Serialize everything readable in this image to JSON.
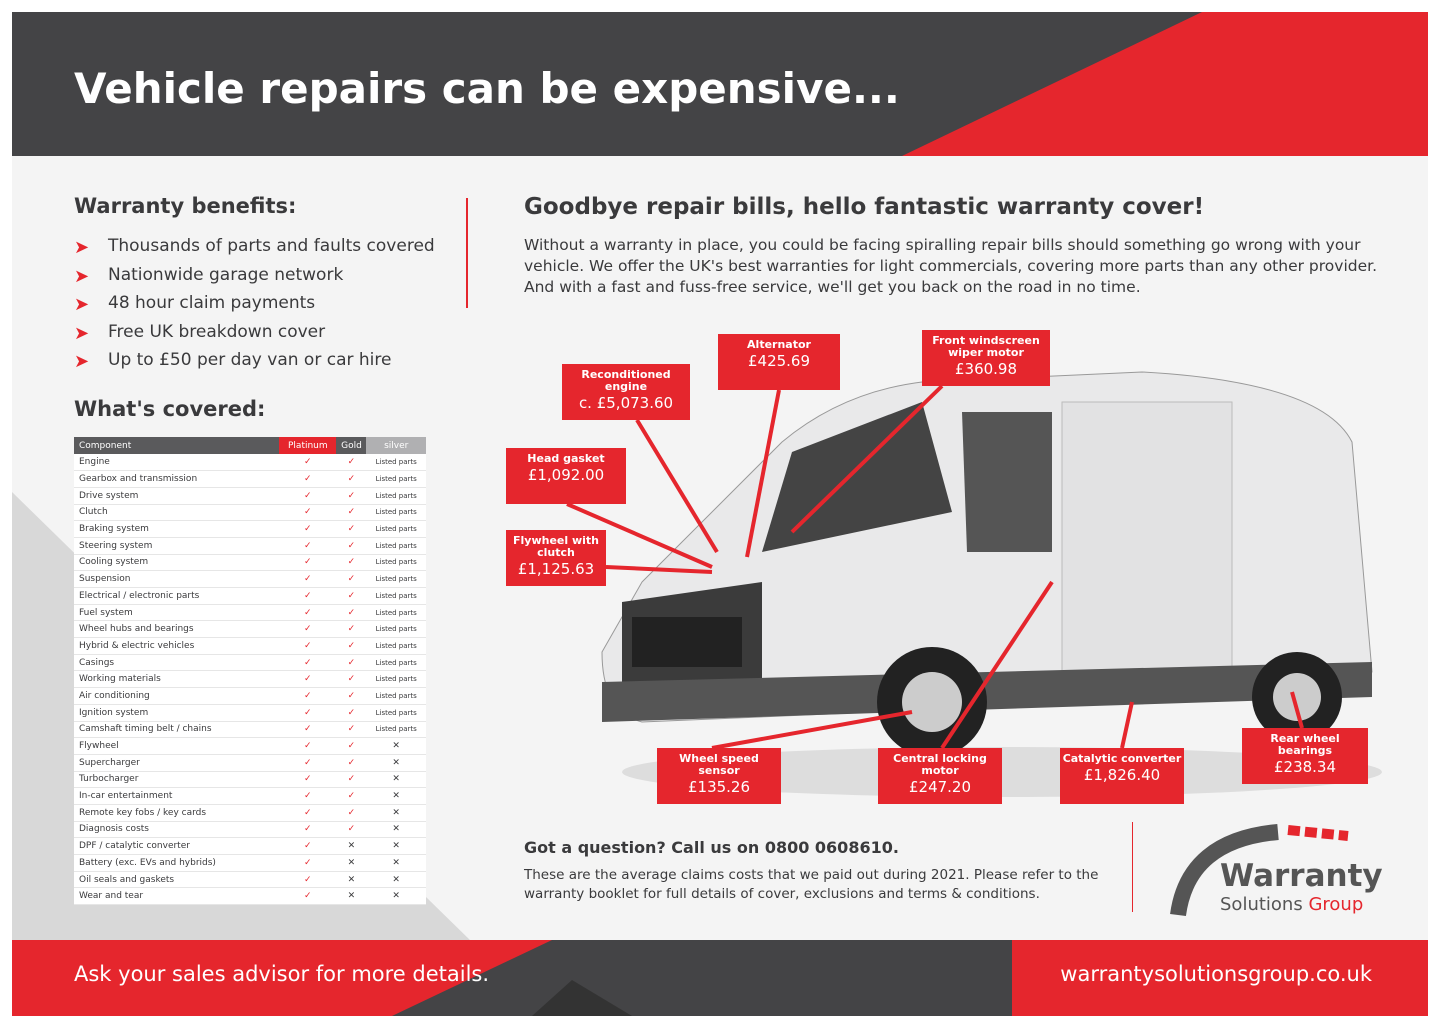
{
  "header": {
    "title": "Vehicle repairs can be expensive..."
  },
  "benefits": {
    "heading": "Warranty benefits:",
    "items": [
      "Thousands of parts and faults covered",
      "Nationwide garage network",
      "48 hour claim payments",
      "Free UK breakdown cover",
      "Up to £50 per day van or car hire"
    ]
  },
  "covered": {
    "heading": "What's covered:",
    "columns": [
      "Component",
      "Platinum",
      "Gold",
      "silver"
    ],
    "rows": [
      [
        "Engine",
        "✓",
        "✓",
        "Listed parts"
      ],
      [
        "Gearbox and transmission",
        "✓",
        "✓",
        "Listed parts"
      ],
      [
        "Drive system",
        "✓",
        "✓",
        "Listed parts"
      ],
      [
        "Clutch",
        "✓",
        "✓",
        "Listed parts"
      ],
      [
        "Braking system",
        "✓",
        "✓",
        "Listed parts"
      ],
      [
        "Steering system",
        "✓",
        "✓",
        "Listed parts"
      ],
      [
        "Cooling system",
        "✓",
        "✓",
        "Listed parts"
      ],
      [
        "Suspension",
        "✓",
        "✓",
        "Listed parts"
      ],
      [
        "Electrical / electronic parts",
        "✓",
        "✓",
        "Listed parts"
      ],
      [
        "Fuel system",
        "✓",
        "✓",
        "Listed parts"
      ],
      [
        "Wheel hubs and bearings",
        "✓",
        "✓",
        "Listed parts"
      ],
      [
        "Hybrid & electric vehicles",
        "✓",
        "✓",
        "Listed parts"
      ],
      [
        "Casings",
        "✓",
        "✓",
        "Listed parts"
      ],
      [
        "Working materials",
        "✓",
        "✓",
        "Listed parts"
      ],
      [
        "Air conditioning",
        "✓",
        "✓",
        "Listed parts"
      ],
      [
        "Ignition system",
        "✓",
        "✓",
        "Listed parts"
      ],
      [
        "Camshaft timing belt / chains",
        "✓",
        "✓",
        "Listed parts"
      ],
      [
        "Flywheel",
        "✓",
        "✓",
        "✕"
      ],
      [
        "Supercharger",
        "✓",
        "✓",
        "✕"
      ],
      [
        "Turbocharger",
        "✓",
        "✓",
        "✕"
      ],
      [
        "In-car entertainment",
        "✓",
        "✓",
        "✕"
      ],
      [
        "Remote key fobs / key cards",
        "✓",
        "✓",
        "✕"
      ],
      [
        "Diagnosis costs",
        "✓",
        "✓",
        "✕"
      ],
      [
        "DPF / catalytic converter",
        "✓",
        "✕",
        "✕"
      ],
      [
        "Battery (exc. EVs and hybrids)",
        "✓",
        "✕",
        "✕"
      ],
      [
        "Oil seals and gaskets",
        "✓",
        "✕",
        "✕"
      ],
      [
        "Wear and tear",
        "✓",
        "✕",
        "✕"
      ]
    ]
  },
  "main": {
    "subtitle": "Goodbye repair bills, hello fantastic warranty cover!",
    "intro": "Without a warranty in place, you could be facing spiralling repair bills should something go wrong with your vehicle. We offer the UK's best warranties for light commercials, covering more parts than any other provider. And with a fast and fuss-free service, we'll get you back on the road in no time."
  },
  "callouts": [
    {
      "label": "Reconditioned engine",
      "price": "c. £5,073.60"
    },
    {
      "label": "Alternator",
      "price": "£425.69"
    },
    {
      "label": "Front windscreen wiper motor",
      "price": "£360.98"
    },
    {
      "label": "Head gasket",
      "price": "£1,092.00"
    },
    {
      "label": "Flywheel with clutch",
      "price": "£1,125.63"
    },
    {
      "label": "Wheel speed sensor",
      "price": "£135.26"
    },
    {
      "label": "Central locking motor",
      "price": "£247.20"
    },
    {
      "label": "Catalytic converter",
      "price": "£1,826.40"
    },
    {
      "label": "Rear wheel bearings",
      "price": "£238.34"
    }
  ],
  "contact": {
    "question": "Got a question? Call us on 0800 0608610.",
    "note": "These are the average claims costs that we paid out during 2021. Please refer to the warranty booklet for full details of cover, exclusions and terms & conditions."
  },
  "logo": {
    "name": "Warranty",
    "sub1": "Solutions",
    "sub2": "Group"
  },
  "footer": {
    "left": "Ask your sales advisor for more details.",
    "right": "warrantysolutionsgroup.co.uk"
  },
  "colors": {
    "red": "#e5262d",
    "dark": "#444446"
  }
}
